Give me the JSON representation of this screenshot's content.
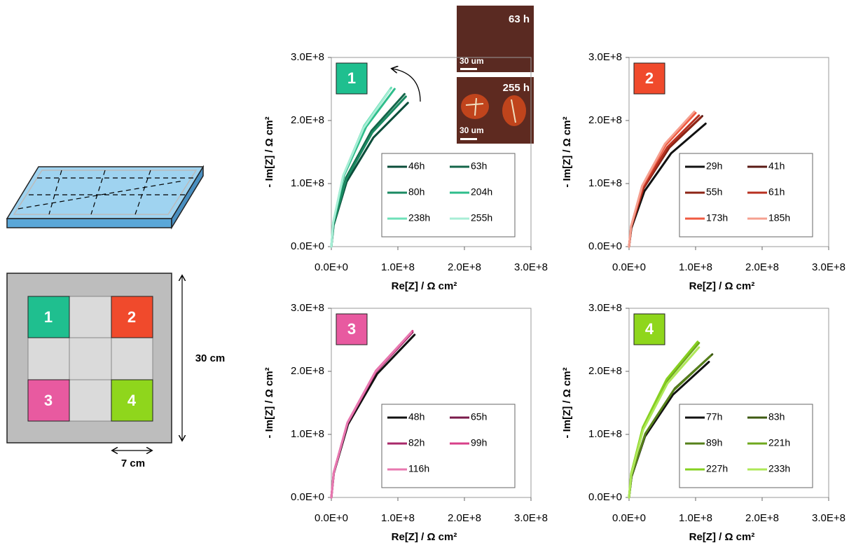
{
  "chart_data": [
    {
      "type": "line",
      "badge": "1",
      "badge_color": "#1fbf8f",
      "x_label": "Re[Z] / Ω cm²",
      "y_label": "- Im[Z] / Ω cm²",
      "xlim": [
        0,
        300000000.0
      ],
      "ylim": [
        0,
        300000000.0
      ],
      "xticks": [
        {
          "value": 0,
          "label": "0.0E+0"
        },
        {
          "value": 100000000.0,
          "label": "1.0E+8"
        },
        {
          "value": 200000000.0,
          "label": "2.0E+8"
        },
        {
          "value": 300000000.0,
          "label": "3.0E+8"
        }
      ],
      "yticks": [
        {
          "value": 0,
          "label": "0.0E+0"
        },
        {
          "value": 100000000.0,
          "label": "1.0E+8"
        },
        {
          "value": 200000000.0,
          "label": "2.0E+8"
        },
        {
          "value": 300000000.0,
          "label": "3.0E+8"
        }
      ],
      "legend": "lower right",
      "series": [
        {
          "name": "46h",
          "color": "#0b4d3a",
          "x": [
            0,
            3450000.0,
            23000000.0,
            63300000.0,
            115000000.0
          ],
          "values": [
            0,
            34200000.0,
            103000000.0,
            173000000.0,
            228000000.0
          ]
        },
        {
          "name": "63h",
          "color": "#14664a",
          "x": [
            0,
            3300000.0,
            22000000.0,
            60500000.0,
            110000000.0
          ],
          "values": [
            0,
            36300000.0,
            109000000.0,
            184000000.0,
            242000000.0
          ]
        },
        {
          "name": "80h",
          "color": "#1a8a62",
          "x": [
            0,
            3360000.0,
            22400000.0,
            61600000.0,
            112000000.0
          ],
          "values": [
            0,
            35700000.0,
            107000000.0,
            181000000.0,
            238000000.0
          ]
        },
        {
          "name": "204h",
          "color": "#2ebd8b",
          "x": [
            0,
            2850000.0,
            19000000.0,
            52300000.0,
            95000000.0
          ],
          "values": [
            0,
            37500000.0,
            113000000.0,
            190000000.0,
            250000000.0
          ]
        },
        {
          "name": "238h",
          "color": "#6ee0b8",
          "x": [
            0,
            2700000.0,
            18000000.0,
            49500000.0,
            90000000.0
          ],
          "values": [
            0,
            37800000.0,
            113000000.0,
            192000000.0,
            252000000.0
          ]
        },
        {
          "name": "255h",
          "color": "#a8eed6",
          "x": [
            0,
            2640000.0,
            17600000.0,
            48400000.0,
            88000000.0
          ],
          "values": [
            0,
            37200000.0,
            112000000.0,
            188000000.0,
            248000000.0
          ]
        }
      ],
      "inset": {
        "top_label": "63 h",
        "bottom_label": "255 h",
        "scale_label": "30 um"
      }
    },
    {
      "type": "line",
      "badge": "2",
      "badge_color": "#f04a2c",
      "x_label": "Re[Z] / Ω cm²",
      "y_label": "- Im[Z] / Ω cm²",
      "xlim": [
        0,
        300000000.0
      ],
      "ylim": [
        0,
        300000000.0
      ],
      "xticks": [
        {
          "value": 0,
          "label": "0.0E+0"
        },
        {
          "value": 100000000.0,
          "label": "1.0E+8"
        },
        {
          "value": 200000000.0,
          "label": "2.0E+8"
        },
        {
          "value": 300000000.0,
          "label": "3.0E+8"
        }
      ],
      "yticks": [
        {
          "value": 0,
          "label": "0.0E+0"
        },
        {
          "value": 100000000.0,
          "label": "1.0E+8"
        },
        {
          "value": 200000000.0,
          "label": "2.0E+8"
        },
        {
          "value": 300000000.0,
          "label": "3.0E+8"
        }
      ],
      "legend": "lower right",
      "series": [
        {
          "name": "29h",
          "color": "#111111",
          "x": [
            0,
            3450000.0,
            23000000.0,
            63300000.0,
            115000000.0
          ],
          "values": [
            0,
            29300000.0,
            87800000.0,
            148000000.0,
            195000000.0
          ]
        },
        {
          "name": "41h",
          "color": "#5a1a14",
          "x": [
            0,
            3300000.0,
            22000000.0,
            60500000.0,
            110000000.0
          ],
          "values": [
            0,
            31100000.0,
            93200000.0,
            157000000.0,
            207000000.0
          ]
        },
        {
          "name": "55h",
          "color": "#8c2415",
          "x": [
            0,
            3240000.0,
            21600000.0,
            59400000.0,
            108000000.0
          ],
          "values": [
            0,
            30800000.0,
            92300000.0,
            156000000.0,
            205000000.0
          ]
        },
        {
          "name": "61h",
          "color": "#b83020",
          "x": [
            0,
            3150000.0,
            21000000.0,
            57800000.0,
            105000000.0
          ],
          "values": [
            0,
            31200000.0,
            93600000.0,
            158000000.0,
            208000000.0
          ]
        },
        {
          "name": "173h",
          "color": "#f05a40",
          "x": [
            0,
            3000000.0,
            20000000.0,
            55000000.0,
            100000000.0
          ],
          "values": [
            0,
            31800000.0,
            95400000.0,
            161000000.0,
            212000000.0
          ]
        },
        {
          "name": "185h",
          "color": "#f5a090",
          "x": [
            0,
            2940000.0,
            19600000.0,
            53900000.0,
            98000000.0
          ],
          "values": [
            0,
            32100000.0,
            96300000.0,
            163000000.0,
            214000000.0
          ]
        }
      ]
    },
    {
      "type": "line",
      "badge": "3",
      "badge_color": "#e85aa0",
      "x_label": "Re[Z] / Ω cm²",
      "y_label": "- Im[Z] / Ω cm²",
      "xlim": [
        0,
        300000000.0
      ],
      "ylim": [
        0,
        300000000.0
      ],
      "xticks": [
        {
          "value": 0,
          "label": "0.0E+0"
        },
        {
          "value": 100000000.0,
          "label": "1.0E+8"
        },
        {
          "value": 200000000.0,
          "label": "2.0E+8"
        },
        {
          "value": 300000000.0,
          "label": "3.0E+8"
        }
      ],
      "yticks": [
        {
          "value": 0,
          "label": "0.0E+0"
        },
        {
          "value": 100000000.0,
          "label": "1.0E+8"
        },
        {
          "value": 200000000.0,
          "label": "2.0E+8"
        },
        {
          "value": 300000000.0,
          "label": "3.0E+8"
        }
      ],
      "legend": "lower right",
      "series": [
        {
          "name": "48h",
          "color": "#111111",
          "x": [
            0,
            3750000.0,
            25000000.0,
            68800000.0,
            125000000.0
          ],
          "values": [
            0,
            38700000.0,
            116000000.0,
            196000000.0,
            258000000.0
          ]
        },
        {
          "name": "65h",
          "color": "#7a1a4a",
          "x": [
            0,
            3660000.0,
            24400000.0,
            67100000.0,
            122000000.0
          ],
          "values": [
            0,
            39300000.0,
            118000000.0,
            199000000.0,
            262000000.0
          ]
        },
        {
          "name": "82h",
          "color": "#a8286a",
          "x": [
            0,
            3600000.0,
            24000000.0,
            66000000.0,
            120000000.0
          ],
          "values": [
            0,
            39000000.0,
            117000000.0,
            198000000.0,
            260000000.0
          ]
        },
        {
          "name": "99h",
          "color": "#d8408a",
          "x": [
            0,
            3660000.0,
            24400000.0,
            67100000.0,
            122000000.0
          ],
          "values": [
            0,
            39600000.0,
            119000000.0,
            201000000.0,
            264000000.0
          ]
        },
        {
          "name": "116h",
          "color": "#e878b0",
          "x": [
            0,
            3600000.0,
            24000000.0,
            66000000.0,
            120000000.0
          ],
          "values": [
            0,
            39300000.0,
            118000000.0,
            199000000.0,
            262000000.0
          ]
        }
      ]
    },
    {
      "type": "line",
      "badge": "4",
      "badge_color": "#8fd61c",
      "x_label": "Re[Z] / Ω cm²",
      "y_label": "- Im[Z] / Ω cm²",
      "xlim": [
        0,
        300000000.0
      ],
      "ylim": [
        0,
        300000000.0
      ],
      "xticks": [
        {
          "value": 0,
          "label": "0.0E+0"
        },
        {
          "value": 100000000.0,
          "label": "1.0E+8"
        },
        {
          "value": 200000000.0,
          "label": "2.0E+8"
        },
        {
          "value": 300000000.0,
          "label": "3.0E+8"
        }
      ],
      "yticks": [
        {
          "value": 0,
          "label": "0.0E+0"
        },
        {
          "value": 100000000.0,
          "label": "1.0E+8"
        },
        {
          "value": 200000000.0,
          "label": "2.0E+8"
        },
        {
          "value": 300000000.0,
          "label": "3.0E+8"
        }
      ],
      "legend": "lower right",
      "series": [
        {
          "name": "77h",
          "color": "#111111",
          "x": [
            0,
            3600000.0,
            24000000.0,
            66000000.0,
            120000000.0
          ],
          "values": [
            0,
            32300000.0,
            96800000.0,
            163000000.0,
            215000000.0
          ]
        },
        {
          "name": "83h",
          "color": "#3e5a12",
          "x": [
            0,
            3750000.0,
            25000000.0,
            68800000.0,
            125000000.0
          ],
          "values": [
            0,
            34100000.0,
            102000000.0,
            173000000.0,
            227000000.0
          ]
        },
        {
          "name": "89h",
          "color": "#56801a",
          "x": [
            0,
            3660000.0,
            24400000.0,
            67100000.0,
            122000000.0
          ],
          "values": [
            0,
            33600000.0,
            101000000.0,
            170000000.0,
            224000000.0
          ]
        },
        {
          "name": "221h",
          "color": "#6fa81e",
          "x": [
            0,
            3150000.0,
            21000000.0,
            57800000.0,
            105000000.0
          ],
          "values": [
            0,
            36800000.0,
            110000000.0,
            186000000.0,
            245000000.0
          ]
        },
        {
          "name": "227h",
          "color": "#86d020",
          "x": [
            0,
            3090000.0,
            20600000.0,
            56700000.0,
            103000000.0
          ],
          "values": [
            0,
            37100000.0,
            111000000.0,
            188000000.0,
            247000000.0
          ]
        },
        {
          "name": "233h",
          "color": "#aee858",
          "x": [
            0,
            3150000.0,
            21000000.0,
            57800000.0,
            105000000.0
          ],
          "values": [
            0,
            35700000.0,
            107000000.0,
            181000000.0,
            238000000.0
          ]
        }
      ]
    }
  ],
  "diagram": {
    "cells": [
      "1",
      "2",
      "3",
      "4"
    ],
    "height_label": "30 cm",
    "width_label": "7 cm"
  }
}
